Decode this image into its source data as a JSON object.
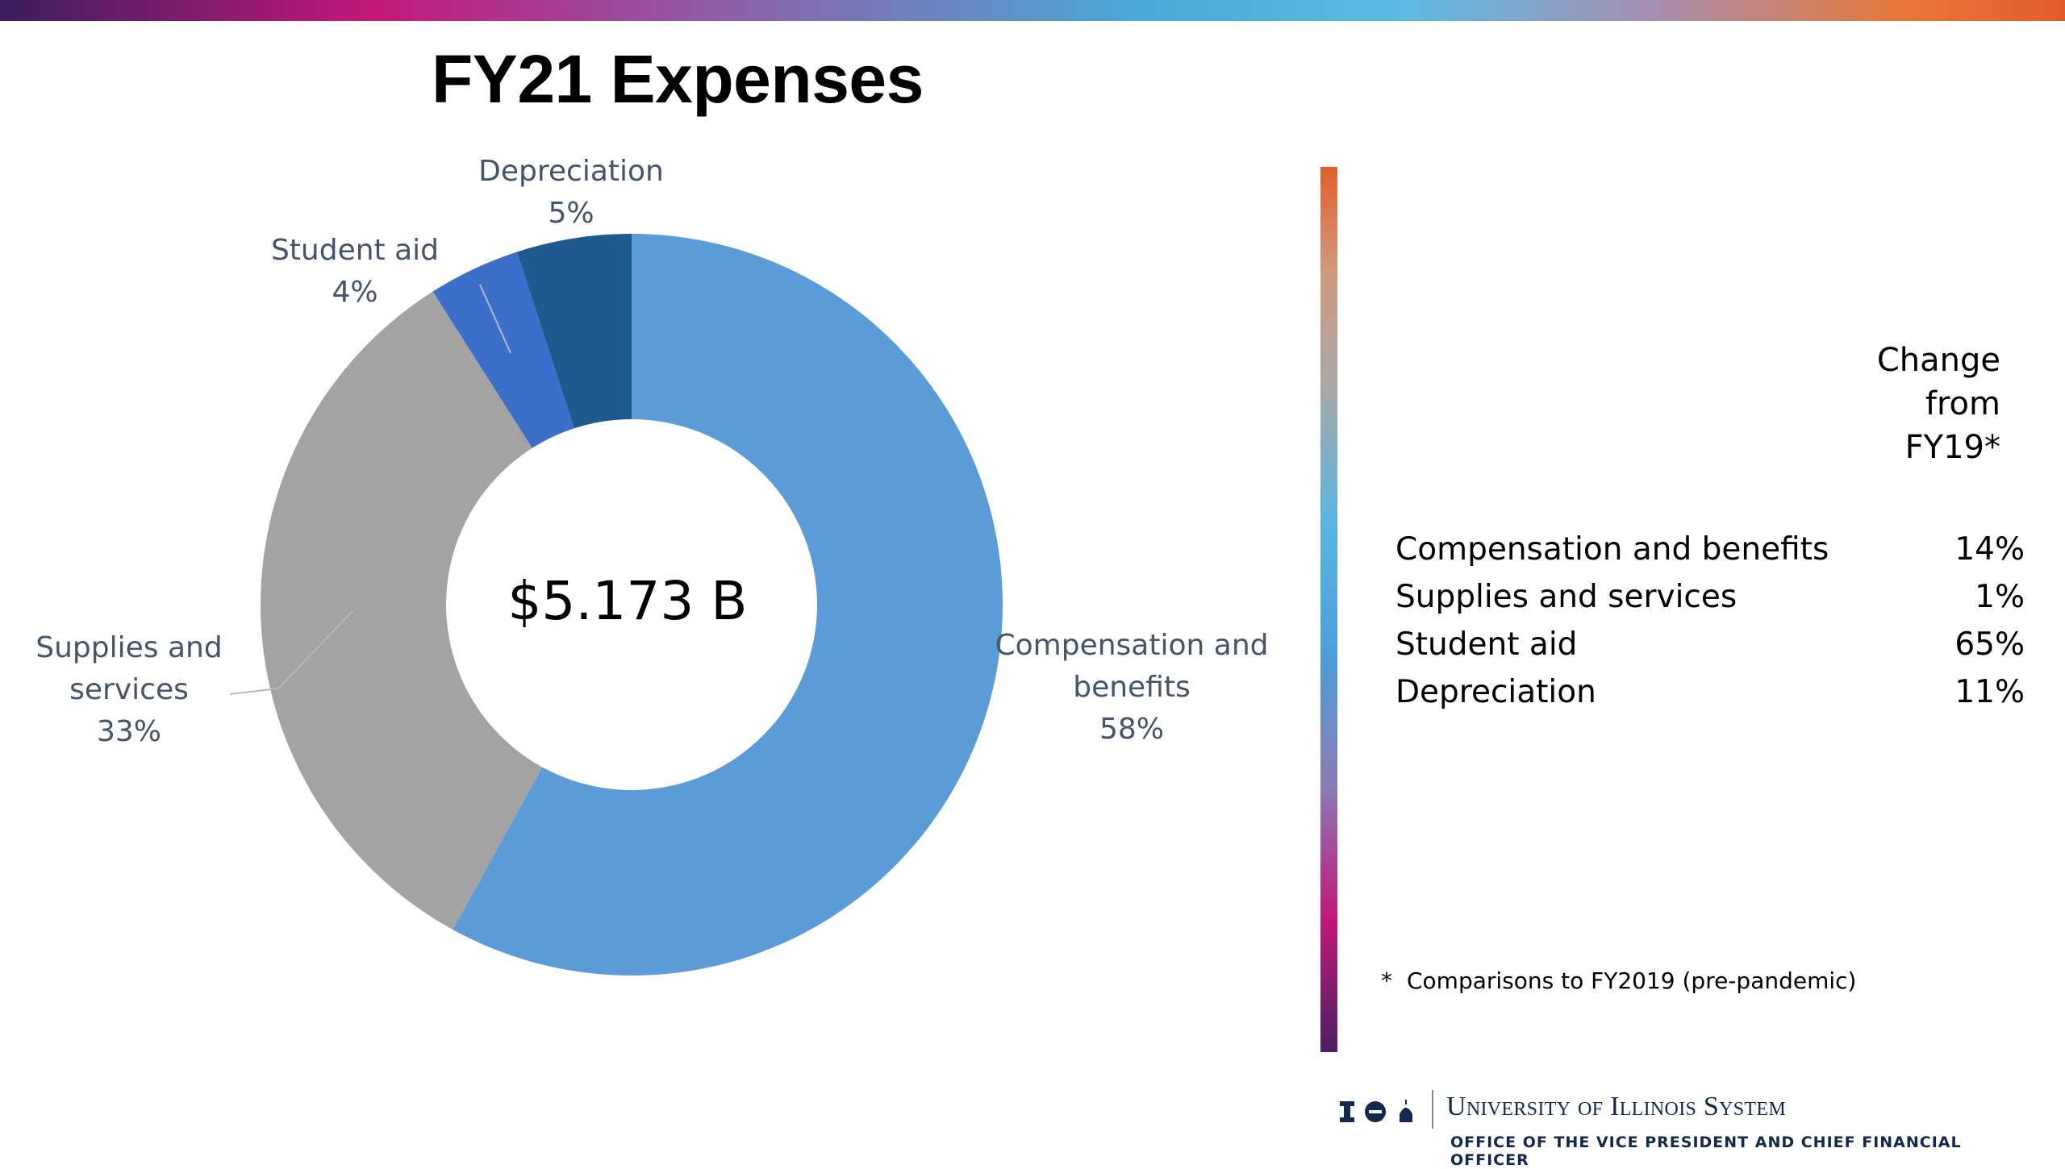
{
  "title": "FY21 Expenses",
  "chart_data": {
    "type": "donut",
    "center_label": "$5.173 B",
    "slices": [
      {
        "name": "Compensation and benefits",
        "label_lines": [
          "Compensation and",
          "benefits"
        ],
        "value": 58,
        "value_label": "58%",
        "color": "#5a9bd8"
      },
      {
        "name": "Supplies and services",
        "label_lines": [
          "Supplies and",
          "services"
        ],
        "value": 33,
        "value_label": "33%",
        "color": "#a3a3a3"
      },
      {
        "name": "Student aid",
        "label_lines": [
          "Student aid"
        ],
        "value": 4,
        "value_label": "4%",
        "color": "#3c6fcb"
      },
      {
        "name": "Depreciation",
        "label_lines": [
          "Depreciation"
        ],
        "value": 5,
        "value_label": "5%",
        "color": "#1f5a8f"
      }
    ]
  },
  "change": {
    "header": "Change\nfrom\nFY19*",
    "rows": [
      {
        "label": "Compensation and benefits",
        "value": "14%"
      },
      {
        "label": "Supplies and services",
        "value": "1%"
      },
      {
        "label": "Student aid",
        "value": "65%"
      },
      {
        "label": "Depreciation",
        "value": "11%"
      }
    ]
  },
  "footnote": {
    "star": "*",
    "text": "Comparisons to FY2019 (pre-pandemic)"
  },
  "logo": {
    "name": "University of Illinois System",
    "office": "OFFICE OF THE VICE PRESIDENT AND CHIEF FINANCIAL OFFICER"
  },
  "colors": {
    "label_text": "#44546a",
    "brand_navy": "#13294b"
  }
}
